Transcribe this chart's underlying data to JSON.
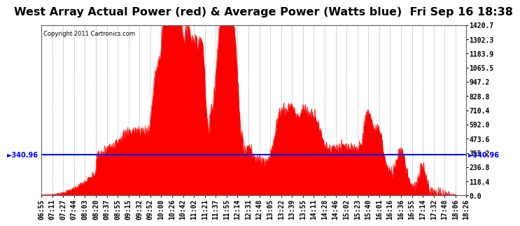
{
  "title": "West Array Actual Power (red) & Average Power (Watts blue)  Fri Sep 16 18:38",
  "copyright": "Copyright 2011 Cartronics.com",
  "average_power": 340.96,
  "y_max": 1420.7,
  "y_min": 0.0,
  "y_ticks": [
    0.0,
    118.4,
    236.8,
    355.2,
    473.6,
    592.0,
    710.4,
    828.8,
    947.2,
    1065.5,
    1183.9,
    1302.3,
    1420.7
  ],
  "x_labels": [
    "06:55",
    "07:11",
    "07:27",
    "07:44",
    "08:03",
    "08:20",
    "08:37",
    "08:55",
    "09:15",
    "09:32",
    "09:52",
    "10:08",
    "10:26",
    "10:42",
    "11:02",
    "11:21",
    "11:37",
    "11:55",
    "12:14",
    "12:31",
    "12:48",
    "13:05",
    "13:22",
    "13:39",
    "13:55",
    "14:11",
    "14:28",
    "14:46",
    "15:02",
    "15:23",
    "15:40",
    "16:01",
    "16:16",
    "16:36",
    "16:55",
    "17:14",
    "17:32",
    "17:48",
    "18:06",
    "18:26"
  ],
  "background_color": "#ffffff",
  "plot_bg_color": "#ffffff",
  "grid_color": "#aaaaaa",
  "fill_color": "#ff0000",
  "avg_line_color": "#0000ff",
  "title_fontsize": 11.5,
  "tick_fontsize": 7,
  "avg_label_fontsize": 7
}
